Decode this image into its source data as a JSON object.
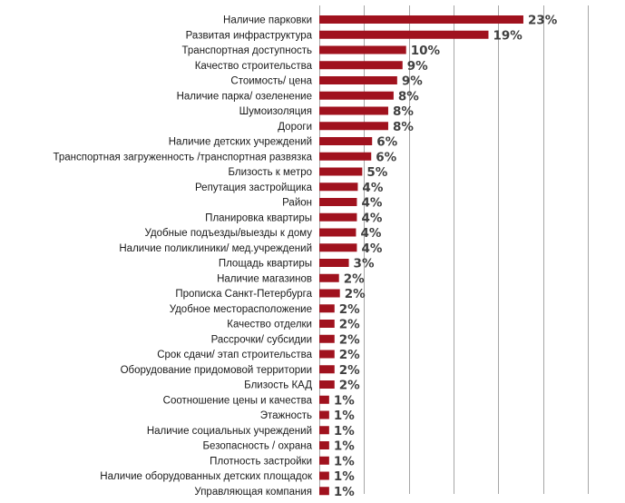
{
  "chart_data": {
    "type": "bar",
    "orientation": "horizontal",
    "bar_color": "#a0121e",
    "grid": true,
    "xlim": [
      0,
      30
    ],
    "grid_step": 5,
    "categories": [
      "Наличие парковки",
      "Развитая инфраструктура",
      "Транспортная доступность",
      "Качество строительства",
      "Стоимость/ цена",
      "Наличие парка/ озеленение",
      "Шумоизоляция",
      "Дороги",
      "Наличие детских учреждений",
      "Транспортная загруженность /транспортная развязка",
      "Близость к метро",
      "Репутация застройщика",
      "Район",
      "Планировка квартиры",
      "Удобные подъезды/выезды к дому",
      "Наличие поликлиники/ мед.учреждений",
      "Площадь квартиры",
      "Наличие магазинов",
      "Прописка Санкт-Петербурга",
      "Удобное месторасположение",
      "Качество отделки",
      "Рассрочки/ субсидии",
      "Срок сдачи/ этап строительства",
      "Оборудование придомовой территории",
      "Близость КАД",
      "Соотношение цены и качества",
      "Этажность",
      "Наличие социальных учреждений",
      "Безопасность / охрана",
      "Плотность застройки",
      "Наличие оборудованных детских площадок",
      "Управляющая компания"
    ],
    "values": [
      22.8,
      18.9,
      9.7,
      9.3,
      8.7,
      8.3,
      7.7,
      7.7,
      5.9,
      5.8,
      4.8,
      4.3,
      4.2,
      4.2,
      4.1,
      4.2,
      3.3,
      2.2,
      2.3,
      1.7,
      1.7,
      1.7,
      1.7,
      1.7,
      1.7,
      1.1,
      1.1,
      1.1,
      1.1,
      1.1,
      1.1,
      1.1
    ],
    "labels": [
      "23%",
      "19%",
      "10%",
      "9%",
      "9%",
      "8%",
      "8%",
      "8%",
      "6%",
      "6%",
      "5%",
      "4%",
      "4%",
      "4%",
      "4%",
      "4%",
      "3%",
      "2%",
      "2%",
      "2%",
      "2%",
      "2%",
      "2%",
      "2%",
      "2%",
      "1%",
      "1%",
      "1%",
      "1%",
      "1%",
      "1%",
      "1%"
    ]
  }
}
